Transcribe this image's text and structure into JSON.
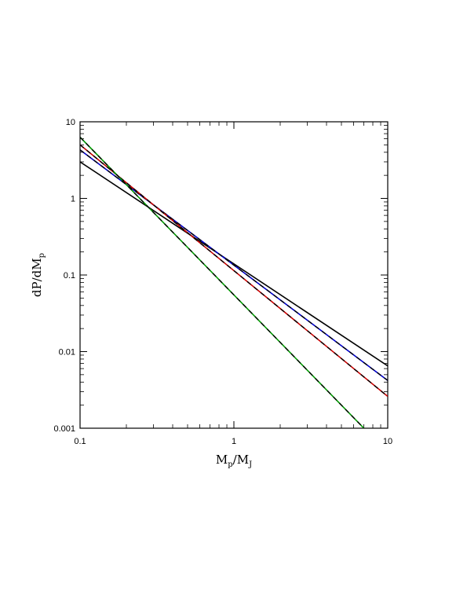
{
  "chart_data": {
    "type": "line",
    "title": "",
    "xlabel": {
      "main": "M",
      "sub1": "p",
      "sep": "/M",
      "sub2": "J"
    },
    "ylabel": {
      "main": "dP/dM",
      "sub": "p"
    },
    "x_scale": "log",
    "y_scale": "log",
    "xlim": [
      0.1,
      10
    ],
    "ylim": [
      0.001,
      10
    ],
    "x_tick_labels": [
      "0.1",
      "1",
      "10"
    ],
    "y_tick_labels": [
      "0.001",
      "0.01",
      "0.1",
      "1",
      "10"
    ],
    "grid": false,
    "legend": "none",
    "series": [
      {
        "color": "#000000",
        "dash": "solid",
        "points": [
          [
            0.1,
            3.0
          ],
          [
            10,
            0.0065
          ]
        ]
      },
      {
        "color": "#0000cc",
        "dash": "solid",
        "points": [
          [
            0.1,
            4.3
          ],
          [
            10,
            0.0042
          ]
        ]
      },
      {
        "color": "#000000",
        "dash": "dashed",
        "points": [
          [
            0.1,
            4.3
          ],
          [
            10,
            0.0042
          ]
        ]
      },
      {
        "color": "#cc0000",
        "dash": "solid",
        "points": [
          [
            0.1,
            5.0
          ],
          [
            10,
            0.0026
          ]
        ]
      },
      {
        "color": "#000000",
        "dash": "dashed",
        "points": [
          [
            0.1,
            5.0
          ],
          [
            10,
            0.0026
          ]
        ]
      },
      {
        "color": "#009900",
        "dash": "solid",
        "points": [
          [
            0.1,
            6.3
          ],
          [
            7.0,
            0.001
          ]
        ]
      },
      {
        "color": "#000000",
        "dash": "dashed",
        "points": [
          [
            0.1,
            6.3
          ],
          [
            7.0,
            0.001
          ]
        ]
      }
    ]
  }
}
